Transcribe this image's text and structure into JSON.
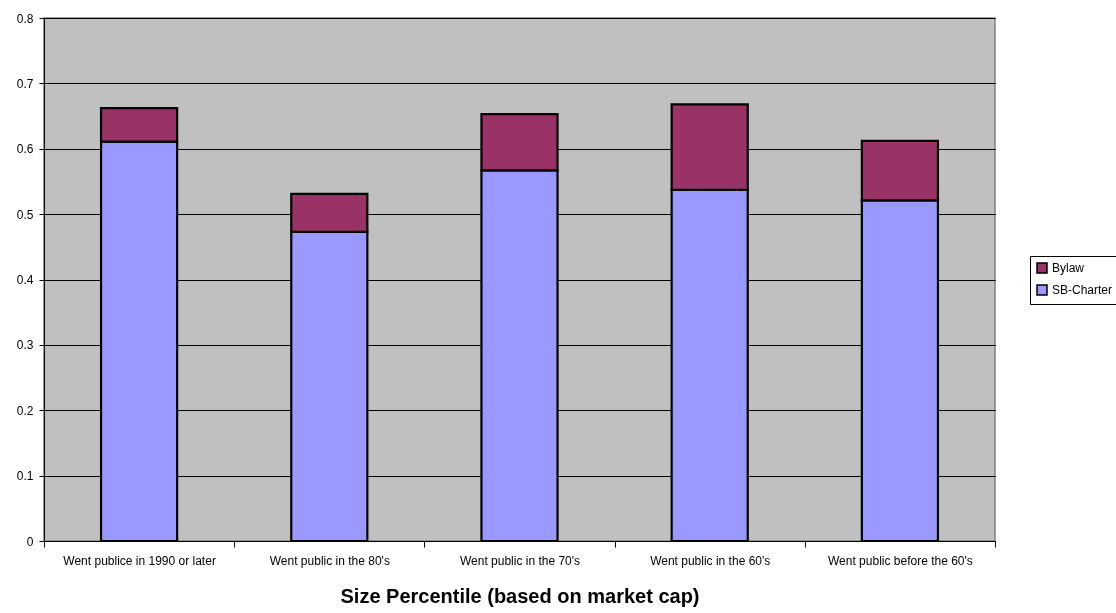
{
  "chart_data": {
    "type": "bar",
    "stacked": true,
    "xlabel": "Size Percentile (based on market cap)",
    "categories": [
      "Went publice in 1990 or later",
      "Went public in the 80's",
      "Went public in the 70's",
      "Went public in the 60's",
      "Went public before the 60's"
    ],
    "series": [
      {
        "name": "SB-Charter",
        "color": "#9999ff",
        "values": [
          0.611,
          0.473,
          0.567,
          0.537,
          0.521
        ]
      },
      {
        "name": "Bylaw",
        "color": "#993366",
        "values": [
          0.051,
          0.058,
          0.086,
          0.131,
          0.091
        ]
      }
    ],
    "ylim": [
      0,
      0.8
    ],
    "yticks": [
      0,
      0.1,
      0.2,
      0.3,
      0.4,
      0.5,
      0.6,
      0.7,
      0.8
    ],
    "grid": "y",
    "legend": "right"
  }
}
